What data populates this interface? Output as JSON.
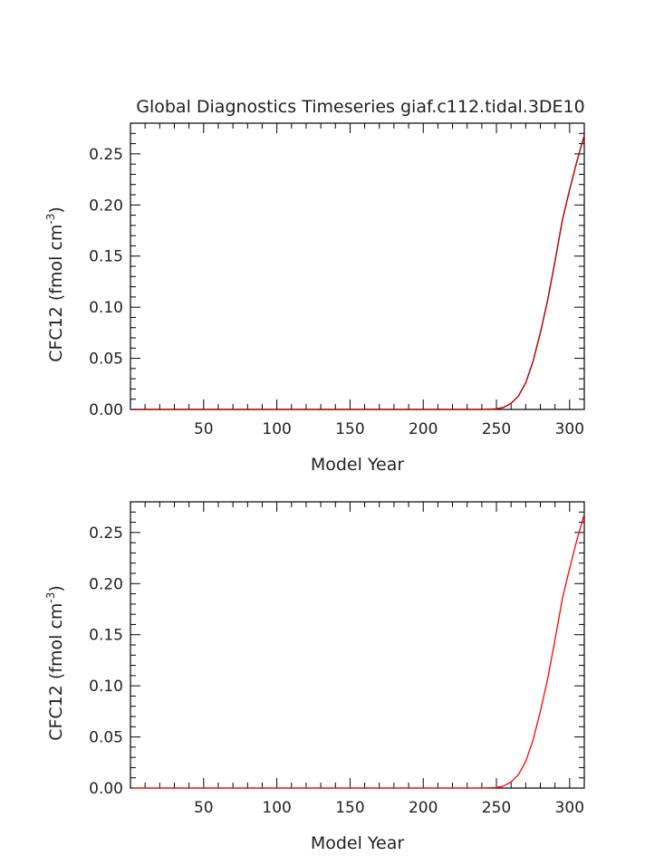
{
  "title": "Global Diagnostics Timeseries giaf.c112.tidal.3DE10",
  "chart_data": [
    {
      "type": "line",
      "xlabel": "Model Year",
      "ylabel": "CFC12 (fmol cm",
      "ylabel_sup": "-3",
      "ylabel_close": ")",
      "xlim": [
        0,
        310
      ],
      "ylim": [
        0,
        0.28
      ],
      "x_ticks": [
        50,
        100,
        150,
        200,
        250,
        300
      ],
      "y_ticks": [
        0.0,
        0.05,
        0.1,
        0.15,
        0.2,
        0.25
      ],
      "y_tick_labels": [
        "0.00",
        "0.05",
        "0.10",
        "0.15",
        "0.20",
        "0.25"
      ],
      "series": [
        {
          "color": "#000000",
          "x": [
            1,
            240,
            250,
            255,
            260,
            265,
            270,
            275,
            280,
            285,
            290,
            295,
            300,
            305,
            310
          ],
          "y": [
            0,
            0,
            0.0005,
            0.002,
            0.006,
            0.013,
            0.026,
            0.047,
            0.075,
            0.107,
            0.145,
            0.185,
            0.215,
            0.243,
            0.268
          ]
        },
        {
          "color": "#cc0000",
          "x": [
            1,
            240,
            250,
            255,
            260,
            265,
            270,
            275,
            280,
            285,
            290,
            295,
            300,
            305,
            310
          ],
          "y": [
            0,
            0,
            0.0005,
            0.002,
            0.006,
            0.013,
            0.026,
            0.047,
            0.075,
            0.107,
            0.145,
            0.185,
            0.215,
            0.243,
            0.268
          ]
        }
      ]
    },
    {
      "type": "line",
      "xlabel": "Model Year",
      "ylabel": "CFC12 (fmol cm",
      "ylabel_sup": "-3",
      "ylabel_close": ")",
      "xlim": [
        0,
        310
      ],
      "ylim": [
        0,
        0.28
      ],
      "x_ticks": [
        50,
        100,
        150,
        200,
        250,
        300
      ],
      "y_ticks": [
        0.0,
        0.05,
        0.1,
        0.15,
        0.2,
        0.25
      ],
      "y_tick_labels": [
        "0.00",
        "0.05",
        "0.10",
        "0.15",
        "0.20",
        "0.25"
      ],
      "series": [
        {
          "color": "#ff0000",
          "x": [
            1,
            240,
            250,
            255,
            260,
            265,
            270,
            275,
            280,
            285,
            290,
            295,
            300,
            305,
            310
          ],
          "y": [
            0,
            0,
            0.0005,
            0.002,
            0.006,
            0.013,
            0.026,
            0.047,
            0.075,
            0.107,
            0.145,
            0.185,
            0.215,
            0.243,
            0.268
          ]
        }
      ]
    }
  ]
}
